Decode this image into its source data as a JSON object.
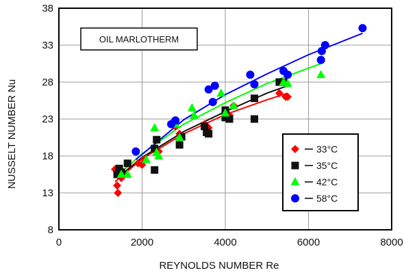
{
  "chart_data": {
    "type": "scatter",
    "title": "",
    "xlabel": "REYNOLDS NUMBER Re",
    "ylabel": "NUSSELT NUMBER Nu",
    "annotation": "OIL MARLOTHERM",
    "xlim": [
      0,
      8000
    ],
    "ylim": [
      8,
      38
    ],
    "x_ticks": [
      0,
      2000,
      4000,
      6000,
      8000
    ],
    "y_ticks": [
      8,
      13,
      18,
      23,
      28,
      33,
      38
    ],
    "grid": true,
    "legend_position": "bottom-right",
    "series": [
      {
        "name": "33°C",
        "marker": "diamond",
        "color": "#ff0000",
        "points": [
          [
            1350,
            16.2
          ],
          [
            1400,
            14.0
          ],
          [
            1420,
            13.0
          ],
          [
            1500,
            15.0
          ],
          [
            1900,
            17.0
          ],
          [
            2000,
            16.8
          ],
          [
            2050,
            17.5
          ],
          [
            2300,
            19.0
          ],
          [
            2400,
            18.6
          ],
          [
            2800,
            22.0
          ],
          [
            2900,
            21.0
          ],
          [
            3500,
            22.3
          ],
          [
            3600,
            21.8
          ],
          [
            4000,
            24.0
          ],
          [
            4100,
            23.5
          ],
          [
            4200,
            24.8
          ],
          [
            5300,
            26.5
          ],
          [
            5450,
            26.0
          ],
          [
            5500,
            26.0
          ]
        ],
        "fit": [
          [
            1350,
            14.5
          ],
          [
            2000,
            17.6
          ],
          [
            3000,
            21.0
          ],
          [
            4000,
            23.6
          ],
          [
            5000,
            25.6
          ],
          [
            5500,
            26.5
          ]
        ]
      },
      {
        "name": "35°C",
        "marker": "square",
        "color": "#111111",
        "points": [
          [
            1400,
            15.5
          ],
          [
            1450,
            16.3
          ],
          [
            1500,
            15.8
          ],
          [
            1650,
            17.0
          ],
          [
            2300,
            16.1
          ],
          [
            2350,
            20.2
          ],
          [
            2300,
            19.0
          ],
          [
            2900,
            19.5
          ],
          [
            2950,
            20.6
          ],
          [
            3500,
            22.0
          ],
          [
            3550,
            21.2
          ],
          [
            3600,
            21.0
          ],
          [
            4000,
            24.2
          ],
          [
            4100,
            23.0
          ],
          [
            4000,
            23.2
          ],
          [
            4700,
            23.0
          ],
          [
            4700,
            25.8
          ],
          [
            5300,
            28.0
          ],
          [
            5400,
            28.0
          ]
        ],
        "fit": [
          [
            1400,
            15.0
          ],
          [
            2000,
            17.8
          ],
          [
            3000,
            21.3
          ],
          [
            4000,
            24.0
          ],
          [
            5000,
            26.5
          ],
          [
            5500,
            27.5
          ]
        ]
      },
      {
        "name": "42°C",
        "marker": "triangle",
        "color": "#00ff00",
        "points": [
          [
            1500,
            15.5
          ],
          [
            1650,
            15.5
          ],
          [
            2100,
            17.5
          ],
          [
            2300,
            21.8
          ],
          [
            2400,
            18.0
          ],
          [
            2350,
            18.5
          ],
          [
            2800,
            22.3
          ],
          [
            2900,
            20.5
          ],
          [
            3200,
            24.5
          ],
          [
            3250,
            23.5
          ],
          [
            3900,
            26.5
          ],
          [
            4000,
            23.8
          ],
          [
            4200,
            24.8
          ],
          [
            5400,
            28.0
          ],
          [
            5500,
            27.8
          ],
          [
            6300,
            29.0
          ]
        ],
        "fit": [
          [
            1500,
            15.8
          ],
          [
            2000,
            18.3
          ],
          [
            3000,
            22.3
          ],
          [
            4000,
            25.2
          ],
          [
            5000,
            27.8
          ],
          [
            6300,
            30.5
          ]
        ]
      },
      {
        "name": "58°C",
        "marker": "circle",
        "color": "#0000ff",
        "points": [
          [
            1850,
            18.6
          ],
          [
            2700,
            22.3
          ],
          [
            2800,
            22.8
          ],
          [
            3600,
            27.0
          ],
          [
            3700,
            25.3
          ],
          [
            3750,
            27.5
          ],
          [
            4600,
            29.0
          ],
          [
            4700,
            27.7
          ],
          [
            5400,
            29.5
          ],
          [
            5500,
            29.0
          ],
          [
            6300,
            31.0
          ],
          [
            6320,
            32.2
          ],
          [
            6400,
            33.0
          ],
          [
            7300,
            35.3
          ]
        ],
        "fit": [
          [
            1850,
            17.5
          ],
          [
            3000,
            22.9
          ],
          [
            4000,
            26.3
          ],
          [
            5000,
            29.1
          ],
          [
            6000,
            31.7
          ],
          [
            7300,
            34.6
          ]
        ]
      }
    ]
  }
}
